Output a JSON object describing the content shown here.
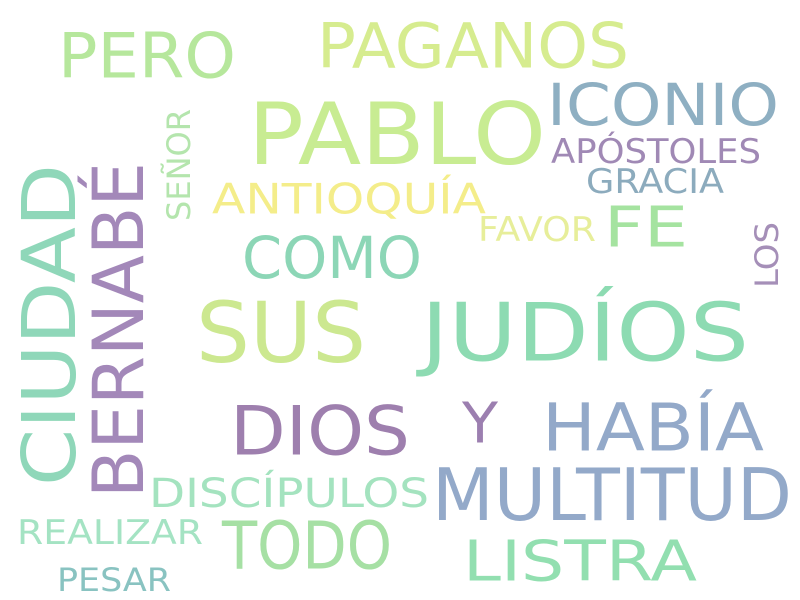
{
  "words": [
    {
      "text": "SUS",
      "color": "#cce890"
    },
    {
      "text": "JUDÍOS",
      "color": "#8ddbb2"
    },
    {
      "text": "PABLO",
      "color": "#c8ec92"
    },
    {
      "text": "MULTITUD",
      "color": "#93a9c9"
    },
    {
      "text": "CIUDAD",
      "color": "#8fd7b9"
    },
    {
      "text": "BERNABÉ",
      "color": "#a388b9"
    },
    {
      "text": "HABÍA",
      "color": "#93a9c9"
    },
    {
      "text": "DIOS",
      "color": "#9e7fae"
    },
    {
      "text": "TODO",
      "color": "#a6e0a4"
    },
    {
      "text": "PAGANOS",
      "color": "#d6ec8f"
    },
    {
      "text": "PERO",
      "color": "#b6e79c"
    },
    {
      "text": "ICONIO",
      "color": "#8eafc2"
    },
    {
      "text": "COMO",
      "color": "#8cd6b6"
    },
    {
      "text": "LISTRA",
      "color": "#92dfb0"
    },
    {
      "text": "FE",
      "color": "#a5e3a0"
    },
    {
      "text": "Y",
      "color": "#9c7fb0"
    },
    {
      "text": "ANTIOQUÍA",
      "color": "#f4ed8a"
    },
    {
      "text": "DISCÍPULOS",
      "color": "#a4e3bf"
    },
    {
      "text": "APÓSTOLES",
      "color": "#a089b5"
    },
    {
      "text": "REALIZAR",
      "color": "#a4e3c3"
    },
    {
      "text": "PESAR",
      "color": "#89c3c1"
    },
    {
      "text": "GRACIA",
      "color": "#8cabbd"
    },
    {
      "text": "FAVOR",
      "color": "#e7ee9a"
    },
    {
      "text": "SEÑOR",
      "color": "#b4e5ad"
    },
    {
      "text": "LOS",
      "color": "#a58fb8"
    }
  ]
}
